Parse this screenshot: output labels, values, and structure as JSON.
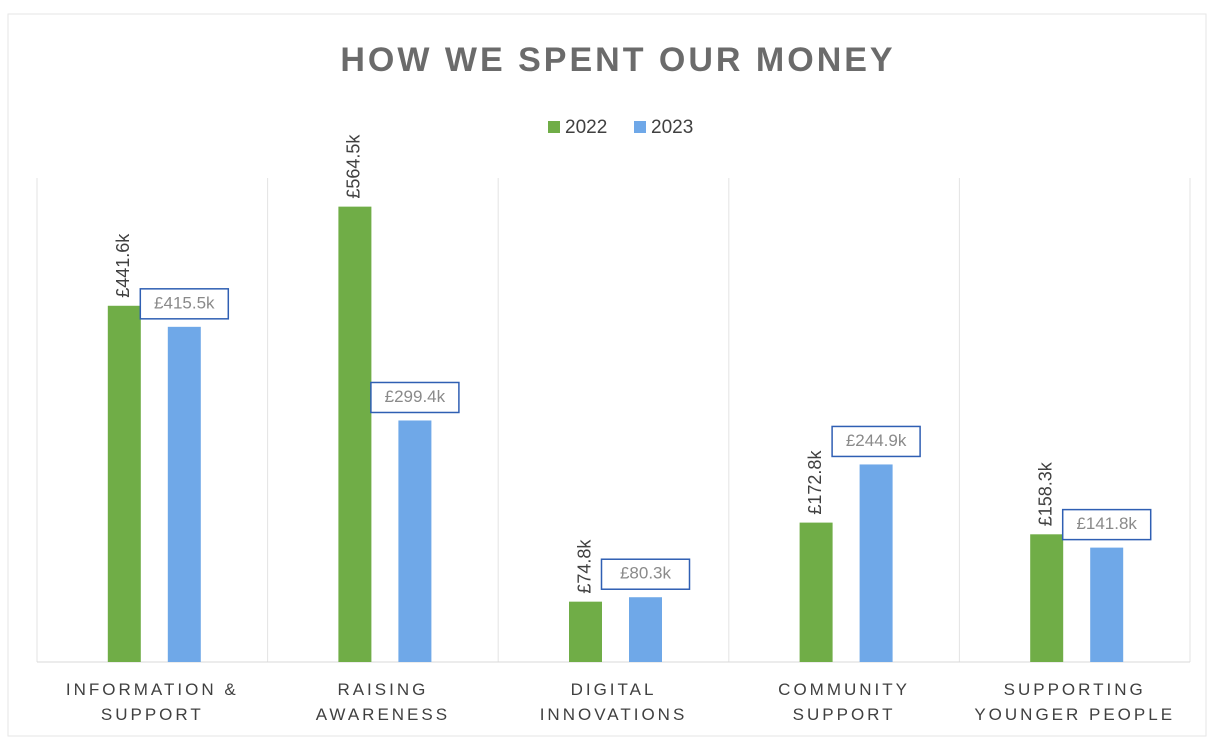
{
  "chart_data": {
    "type": "bar",
    "title": "HOW WE SPENT OUR MONEY",
    "categories": [
      "INFORMATION & SUPPORT",
      "RAISING AWARENESS",
      "DIGITAL INNOVATIONS",
      "COMMUNITY SUPPORT",
      "SUPPORTING YOUNGER PEOPLE"
    ],
    "series": [
      {
        "name": "2022",
        "color": "#70ad47",
        "values": [
          441.6,
          564.5,
          74.8,
          172.8,
          158.3
        ],
        "value_labels": [
          "£441.6k",
          "£564.5k",
          "£74.8k",
          "£172.8k",
          "£158.3k"
        ]
      },
      {
        "name": "2023",
        "color": "#6fa8e8",
        "values": [
          415.5,
          299.4,
          80.3,
          244.9,
          141.8
        ],
        "value_labels": [
          "£415.5k",
          "£299.4k",
          "£80.3k",
          "£244.9k",
          "£141.8k"
        ]
      }
    ],
    "ylim": [
      0,
      600
    ],
    "legend": "top"
  }
}
